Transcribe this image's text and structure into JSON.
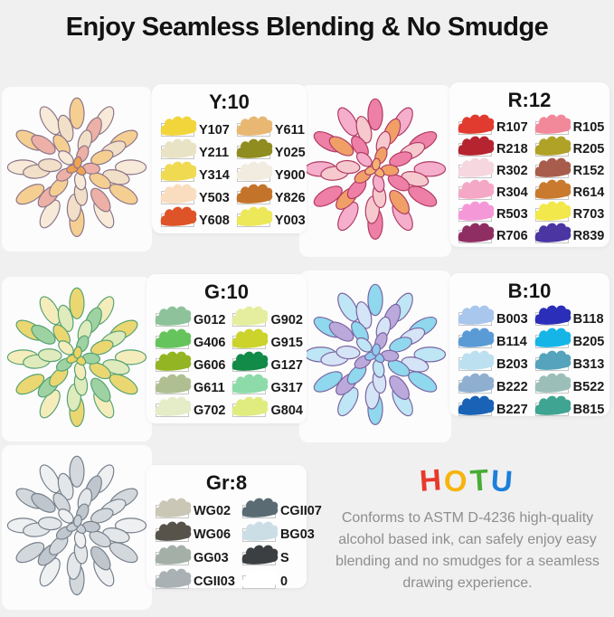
{
  "title": "Enjoy Seamless Blending & No Smudge",
  "brand": {
    "name": "HOTU",
    "letters": [
      {
        "char": "H",
        "color": "#E8392B"
      },
      {
        "char": "O",
        "color": "#F6B40E"
      },
      {
        "char": "T",
        "color": "#47AD33"
      },
      {
        "char": "U",
        "color": "#1C7FD9"
      }
    ]
  },
  "footer_text": "Conforms to ASTM D-4236 high-quality alcohol based ink, can safely enjoy easy blending and no smudges for a seamless drawing experience.",
  "panels": [
    {
      "group": "Yellow",
      "title": "Y:10",
      "columns": [
        [
          {
            "code": "Y107",
            "hex": "#F2D53B"
          },
          {
            "code": "Y211",
            "hex": "#E9E3C6"
          },
          {
            "code": "Y314",
            "hex": "#F0DA52"
          },
          {
            "code": "Y503",
            "hex": "#F9DDBE"
          },
          {
            "code": "Y608",
            "hex": "#DE5327"
          }
        ],
        [
          {
            "code": "Y611",
            "hex": "#E8B873"
          },
          {
            "code": "Y025",
            "hex": "#8F8C20"
          },
          {
            "code": "Y900",
            "hex": "#F2EBE0"
          },
          {
            "code": "Y826",
            "hex": "#C4732B"
          },
          {
            "code": "Y003",
            "hex": "#EDE75A"
          }
        ]
      ]
    },
    {
      "group": "Red",
      "title": "R:12",
      "columns": [
        [
          {
            "code": "R107",
            "hex": "#E13A2F"
          },
          {
            "code": "R218",
            "hex": "#B5242F"
          },
          {
            "code": "R302",
            "hex": "#F6D7DF"
          },
          {
            "code": "R304",
            "hex": "#F5A8C5"
          },
          {
            "code": "R503",
            "hex": "#F598D8"
          },
          {
            "code": "R706",
            "hex": "#8F2E63"
          }
        ],
        [
          {
            "code": "R105",
            "hex": "#F2899A"
          },
          {
            "code": "R205",
            "hex": "#AFA227"
          },
          {
            "code": "R152",
            "hex": "#A85C4B"
          },
          {
            "code": "R614",
            "hex": "#C97A2E"
          },
          {
            "code": "R703",
            "hex": "#F2E84B"
          },
          {
            "code": "R839",
            "hex": "#4A35A3"
          }
        ]
      ]
    },
    {
      "group": "Green",
      "title": "G:10",
      "columns": [
        [
          {
            "code": "G012",
            "hex": "#8EC29A"
          },
          {
            "code": "G406",
            "hex": "#66C45C"
          },
          {
            "code": "G606",
            "hex": "#93B524"
          },
          {
            "code": "G611",
            "hex": "#AFBF92"
          },
          {
            "code": "G702",
            "hex": "#E4ECC8"
          }
        ],
        [
          {
            "code": "G902",
            "hex": "#E4EE9E"
          },
          {
            "code": "G915",
            "hex": "#CCD32B"
          },
          {
            "code": "G127",
            "hex": "#128A48"
          },
          {
            "code": "G317",
            "hex": "#8CDBA8"
          },
          {
            "code": "G804",
            "hex": "#E0EC7E"
          }
        ]
      ]
    },
    {
      "group": "Blue",
      "title": "B:10",
      "columns": [
        [
          {
            "code": "B003",
            "hex": "#A9C6EC"
          },
          {
            "code": "B114",
            "hex": "#5B9BD5"
          },
          {
            "code": "B203",
            "hex": "#BCE0F0"
          },
          {
            "code": "B222",
            "hex": "#8FAFD0"
          },
          {
            "code": "B227",
            "hex": "#1A62B5"
          }
        ],
        [
          {
            "code": "B118",
            "hex": "#2B2EB8"
          },
          {
            "code": "B205",
            "hex": "#16B5E8"
          },
          {
            "code": "B313",
            "hex": "#55A3BC"
          },
          {
            "code": "B522",
            "hex": "#9BBFB8"
          },
          {
            "code": "B815",
            "hex": "#3FA491"
          }
        ]
      ]
    },
    {
      "group": "Gray",
      "title": "Gr:8",
      "columns": [
        [
          {
            "code": "WG02",
            "hex": "#CBC7B6"
          },
          {
            "code": "WG06",
            "hex": "#57534A"
          },
          {
            "code": "GG03",
            "hex": "#A3AFA7"
          },
          {
            "code": "CGII03",
            "hex": "#A9B1B5"
          }
        ],
        [
          {
            "code": "CGII07",
            "hex": "#5A6B73"
          },
          {
            "code": "BG03",
            "hex": "#CBDEE6"
          },
          {
            "code": "S",
            "hex": "#3B3F42"
          },
          {
            "code": "0",
            "hex": "#FFFFFF"
          }
        ]
      ]
    }
  ],
  "flowers": [
    {
      "group": "Yellow",
      "petal_colors": [
        "#F8EAD8",
        "#F5CE92",
        "#F2DFC8",
        "#EDB0A6"
      ],
      "core_color": "#EFA254",
      "line_color": "#8A7488"
    },
    {
      "group": "Red",
      "petal_colors": [
        "#F5AECB",
        "#EE7FA6",
        "#F6C9CE",
        "#F0A067"
      ],
      "core_color": "#F2B470",
      "line_color": "#B03A62"
    },
    {
      "group": "Green",
      "petal_colors": [
        "#F4EDBB",
        "#EAD772",
        "#DFEBBC",
        "#9ED2A2"
      ],
      "core_color": "#EBD463",
      "line_color": "#55A172"
    },
    {
      "group": "Blue",
      "petal_colors": [
        "#BEE6F5",
        "#8FD8EE",
        "#D5E4F6",
        "#BBA9DC"
      ],
      "core_color": "#8FCBEE",
      "line_color": "#7A64A0"
    },
    {
      "group": "Gray",
      "petal_colors": [
        "#EEF0F2",
        "#D3D8DD",
        "#E4E7EA",
        "#BFC6CD"
      ],
      "core_color": "#CBD1D7",
      "line_color": "#757E88"
    }
  ]
}
